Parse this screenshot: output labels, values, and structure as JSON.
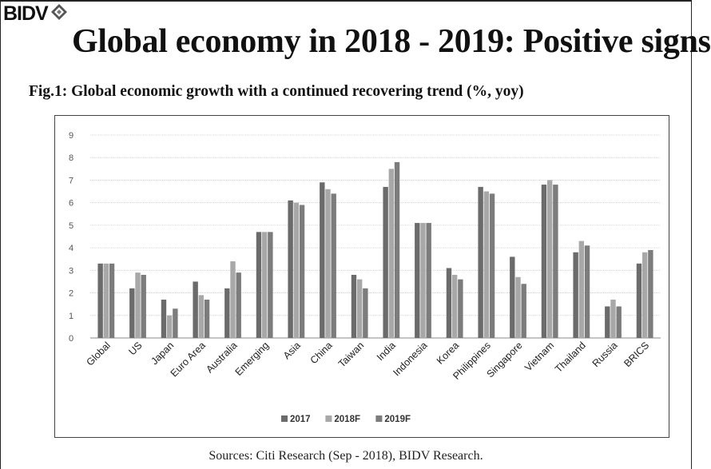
{
  "header": {
    "logo_text": "BIDV",
    "title": "Global economy in 2018 - 2019: Positive signs",
    "figure_title": "Fig.1: Global economic growth with a continued recovering trend (%, yoy)"
  },
  "footer": {
    "source": "Sources: Citi Research (Sep - 2018), BIDV Research."
  },
  "chart_data": {
    "type": "bar",
    "title": "Fig.1: Global economic growth with a continued recovering trend (%, yoy)",
    "categories": [
      "Global",
      "US",
      "Japan",
      "Euro Area",
      "Australia",
      "Emerging",
      "Asia",
      "China",
      "Taiwan",
      "India",
      "Indonesia",
      "Korea",
      "Philippines",
      "Singapore",
      "Vietnam",
      "Thailand",
      "Russia",
      "BRICS"
    ],
    "series": [
      {
        "name": "2017",
        "color": "#6b6b6b",
        "values": [
          3.3,
          2.2,
          1.7,
          2.5,
          2.2,
          4.7,
          6.1,
          6.9,
          2.8,
          6.7,
          5.1,
          3.1,
          6.7,
          3.6,
          6.8,
          3.8,
          1.4,
          3.3
        ]
      },
      {
        "name": "2018F",
        "color": "#a8a8a8",
        "values": [
          3.3,
          2.9,
          1.0,
          1.9,
          3.4,
          4.7,
          6.0,
          6.6,
          2.6,
          7.5,
          5.1,
          2.8,
          6.5,
          2.7,
          7.0,
          4.3,
          1.7,
          3.8
        ]
      },
      {
        "name": "2019F",
        "color": "#7c7c7c",
        "values": [
          3.3,
          2.8,
          1.3,
          1.7,
          2.9,
          4.7,
          5.9,
          6.4,
          2.2,
          7.8,
          5.1,
          2.6,
          6.4,
          2.4,
          6.8,
          4.1,
          1.4,
          3.9
        ]
      }
    ],
    "y_ticks": [
      0,
      1,
      2,
      3,
      4,
      5,
      6,
      7,
      8,
      9
    ],
    "ylim": [
      0,
      9
    ],
    "grid": true,
    "legend_position": "bottom"
  }
}
